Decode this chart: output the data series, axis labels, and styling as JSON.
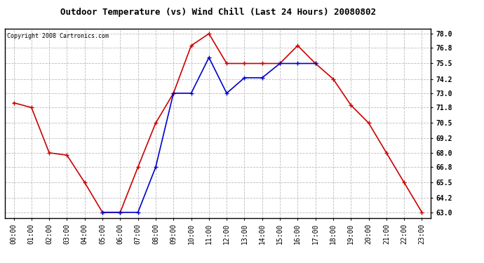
{
  "title": "Outdoor Temperature (vs) Wind Chill (Last 24 Hours) 20080802",
  "copyright": "Copyright 2008 Cartronics.com",
  "hours": [
    "00:00",
    "01:00",
    "02:00",
    "03:00",
    "04:00",
    "05:00",
    "06:00",
    "07:00",
    "08:00",
    "09:00",
    "10:00",
    "11:00",
    "12:00",
    "13:00",
    "14:00",
    "15:00",
    "16:00",
    "17:00",
    "18:00",
    "19:00",
    "20:00",
    "21:00",
    "22:00",
    "23:00"
  ],
  "temp": [
    72.2,
    71.8,
    68.0,
    67.8,
    65.5,
    63.0,
    63.0,
    66.8,
    70.5,
    73.0,
    77.0,
    78.0,
    75.5,
    75.5,
    75.5,
    75.5,
    77.0,
    75.5,
    74.2,
    72.0,
    70.5,
    68.0,
    65.5,
    63.0
  ],
  "windchill": [
    null,
    null,
    null,
    null,
    null,
    63.0,
    63.0,
    63.0,
    66.8,
    73.0,
    73.0,
    76.0,
    73.0,
    74.3,
    74.3,
    75.5,
    75.5,
    75.5,
    null,
    null,
    null,
    null,
    null,
    null
  ],
  "yticks": [
    63.0,
    64.2,
    65.5,
    66.8,
    68.0,
    69.2,
    70.5,
    71.8,
    73.0,
    74.2,
    75.5,
    76.8,
    78.0
  ],
  "ymin": 62.5,
  "ymax": 78.4,
  "temp_color": "#cc0000",
  "windchill_color": "#0000cc",
  "grid_color": "#bbbbbb",
  "bg_color": "#ffffff",
  "marker": "+",
  "marker_size": 5,
  "linewidth": 1.2,
  "title_fontsize": 9,
  "copyright_fontsize": 6,
  "tick_fontsize": 7
}
